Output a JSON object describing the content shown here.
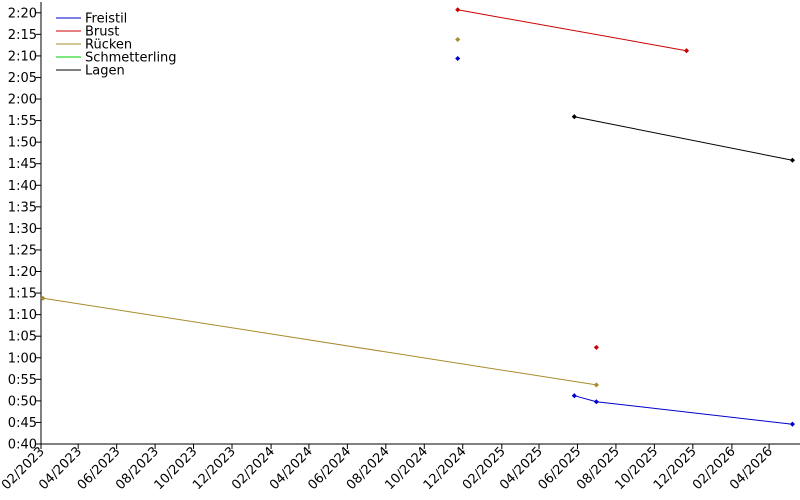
{
  "chart_data": {
    "type": "line",
    "title": "",
    "xlabel": "",
    "ylabel": "",
    "grid": false,
    "legend_position": "top-left",
    "x_ticks": [
      "02/2023",
      "04/2023",
      "06/2023",
      "08/2023",
      "10/2023",
      "12/2023",
      "02/2024",
      "04/2024",
      "06/2024",
      "08/2024",
      "10/2024",
      "12/2024",
      "02/2025",
      "04/2025",
      "06/2025",
      "08/2025",
      "10/2025",
      "12/2025",
      "02/2026",
      "04/2026"
    ],
    "x_range": [
      "2023-02-01",
      "2026-05-20"
    ],
    "y_ticks": [
      "0:40",
      "0:45",
      "0:50",
      "0:55",
      "1:00",
      "1:05",
      "1:10",
      "1:15",
      "1:20",
      "1:25",
      "1:30",
      "1:35",
      "1:40",
      "1:45",
      "1:50",
      "1:55",
      "2:00",
      "2:05",
      "2:10",
      "2:15",
      "2:20"
    ],
    "y_range": [
      "0:40",
      "2:22.5"
    ],
    "series": [
      {
        "name": "Freistil",
        "color": "#0000cc",
        "lines": [
          [
            [
              "2025-05-27",
              "0:51.2"
            ],
            [
              "2025-07-01",
              "0:49.8"
            ],
            [
              "2026-05-08",
              "0:44.6"
            ]
          ]
        ],
        "points": [
          [
            "2024-11-23",
            "2:09.4"
          ]
        ]
      },
      {
        "name": "Brust",
        "color": "#cc0000",
        "lines": [
          [
            [
              "2024-11-23",
              "2:20.7"
            ],
            [
              "2025-11-21",
              "2:11.2"
            ]
          ]
        ],
        "points": [
          [
            "2025-07-01",
            "1:02.4"
          ]
        ]
      },
      {
        "name": "Rücken",
        "color": "#a88b2c",
        "lines": [
          [
            [
              "2023-02-04",
              "1:13.8"
            ],
            [
              "2025-07-01",
              "0:53.7"
            ]
          ]
        ],
        "points": [
          [
            "2024-11-23",
            "2:13.8"
          ]
        ]
      },
      {
        "name": "Schmetterling",
        "color": "#00cc00",
        "lines": [],
        "points": []
      },
      {
        "name": "Lagen",
        "color": "#000000",
        "lines": [
          [
            [
              "2025-05-27",
              "1:55.9"
            ],
            [
              "2026-05-08",
              "1:45.8"
            ]
          ]
        ],
        "points": []
      }
    ]
  }
}
